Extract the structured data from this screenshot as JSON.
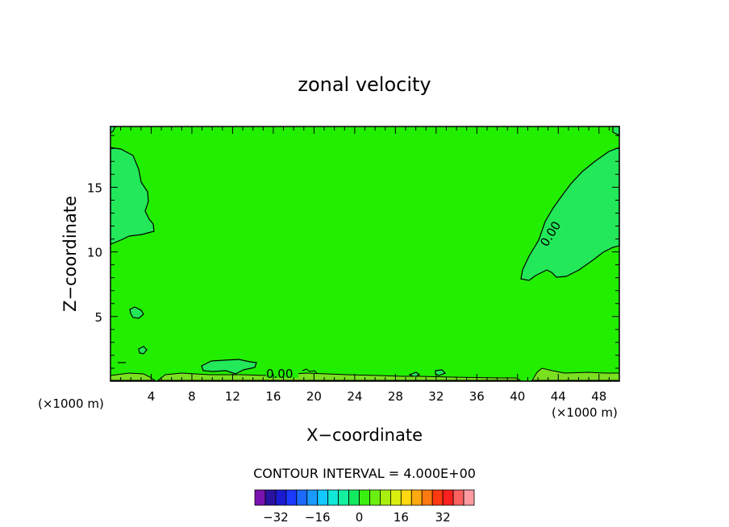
{
  "chart_data": {
    "type": "contour",
    "title": "zonal velocity",
    "xlabel": "X−coordinate",
    "ylabel": "Z−coordinate",
    "x_units_left": "(×1000 m)",
    "x_units_right": "(×1000 m)",
    "xlim": [
      0,
      50
    ],
    "ylim": [
      0,
      19.7
    ],
    "xticks": [
      "4",
      "8",
      "12",
      "16",
      "20",
      "24",
      "28",
      "32",
      "36",
      "40",
      "44",
      "48"
    ],
    "xtick_values": [
      4,
      8,
      12,
      16,
      20,
      24,
      28,
      32,
      36,
      40,
      44,
      48
    ],
    "yticks": [
      "5",
      "10",
      "15"
    ],
    "ytick_values": [
      5,
      10,
      15
    ],
    "contour_labels": [
      {
        "text": "0.00",
        "x": 43.5,
        "y": 12.4
      },
      {
        "text": "0.00",
        "x": 17.2,
        "y": 0.5
      }
    ],
    "contour_interval_label": "CONTOUR INTERVAL = 4.000E+00",
    "colorbar": {
      "colors": [
        "#7a12b0",
        "#2a12a0",
        "#1a1ad0",
        "#1a3aff",
        "#1a6aff",
        "#1a9aff",
        "#12c8ff",
        "#12e8d8",
        "#12f0a0",
        "#12e860",
        "#3aef10",
        "#6aef10",
        "#a8ef10",
        "#d8ef10",
        "#ffd810",
        "#ffaa10",
        "#ff7a10",
        "#ff3a10",
        "#ff2020",
        "#ff6060",
        "#ff9aa0"
      ],
      "tick_labels": [
        "−32",
        "−16",
        "0",
        "16",
        "32"
      ],
      "tick_values": [
        -32,
        -16,
        0,
        16,
        32
      ]
    },
    "background_color": "#22ee00",
    "negative_region_color": "#22e85a",
    "low_band_color": "#7ae020"
  }
}
